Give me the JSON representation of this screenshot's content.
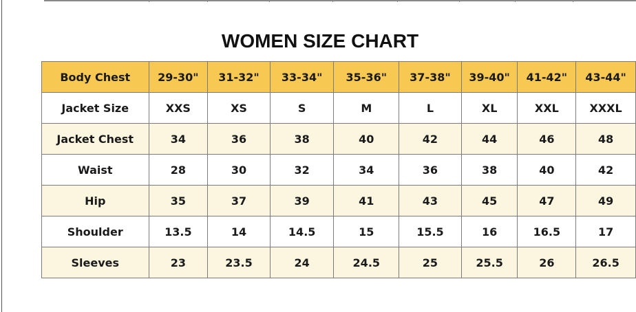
{
  "title": "WOMEN SIZE CHART",
  "colors": {
    "header": "#f7c852",
    "alt_row": "#fcf6e0"
  },
  "header": {
    "label": "Body Chest",
    "values": [
      "29-30\"",
      "31-32\"",
      "33-34\"",
      "35-36\"",
      "37-38\"",
      "39-40\"",
      "41-42\"",
      "43-44\""
    ]
  },
  "rows": [
    {
      "label": "Jacket Size",
      "values": [
        "XXS",
        "XS",
        "S",
        "M",
        "L",
        "XL",
        "XXL",
        "XXXL"
      ]
    },
    {
      "label": "Jacket Chest",
      "values": [
        "34",
        "36",
        "38",
        "40",
        "42",
        "44",
        "46",
        "48"
      ]
    },
    {
      "label": "Waist",
      "values": [
        "28",
        "30",
        "32",
        "34",
        "36",
        "38",
        "40",
        "42"
      ]
    },
    {
      "label": "Hip",
      "values": [
        "35",
        "37",
        "39",
        "41",
        "43",
        "45",
        "47",
        "49"
      ]
    },
    {
      "label": "Shoulder",
      "values": [
        "13.5",
        "14",
        "14.5",
        "15",
        "15.5",
        "16",
        "16.5",
        "17"
      ]
    },
    {
      "label": "Sleeves",
      "values": [
        "23",
        "23.5",
        "24",
        "24.5",
        "25",
        "25.5",
        "26",
        "26.5"
      ]
    }
  ]
}
